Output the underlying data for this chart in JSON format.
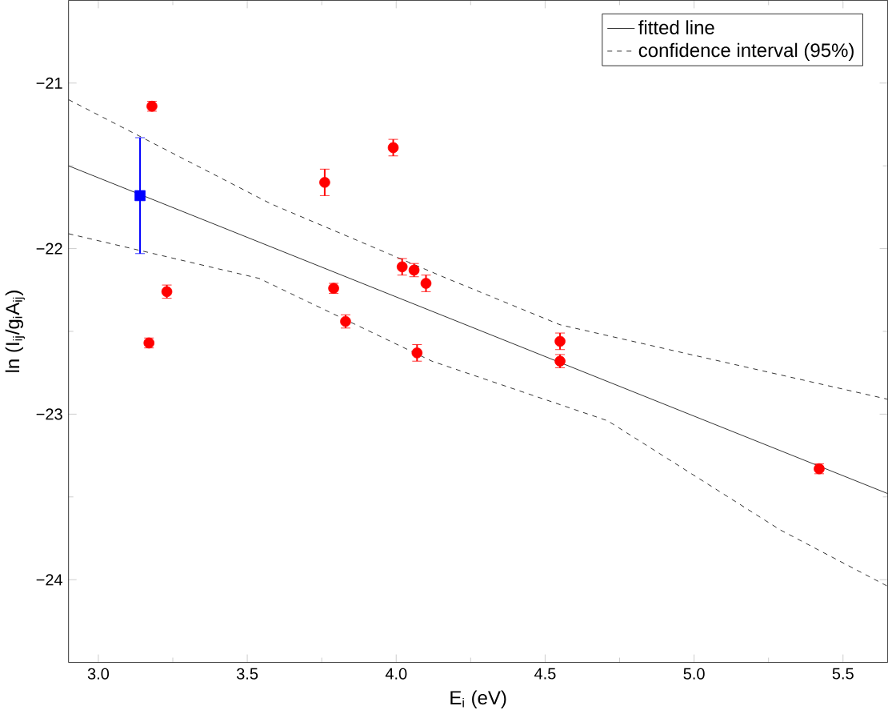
{
  "chart_data": {
    "type": "scatter",
    "xlabel": "E$_{i}$ (eV)",
    "ylabel": "ln (I$_{ij}$/g$_{i}$A$_{ij}$)",
    "xlim": [
      2.9,
      5.65
    ],
    "ylim": [
      -24.5,
      -20.5
    ],
    "xticks": [
      {
        "value": 3.0,
        "label": "3.0"
      },
      {
        "value": 3.5,
        "label": "3.5"
      },
      {
        "value": 4.0,
        "label": "4.0"
      },
      {
        "value": 4.5,
        "label": "4.5"
      },
      {
        "value": 5.0,
        "label": "5.0"
      },
      {
        "value": 5.5,
        "label": "5.5"
      }
    ],
    "yticks": [
      {
        "value": -24,
        "label": "−24"
      },
      {
        "value": -23,
        "label": "−23"
      },
      {
        "value": -22,
        "label": "−22"
      },
      {
        "value": -21,
        "label": "−21"
      }
    ],
    "grid": false,
    "legend": "top right",
    "series": [
      {
        "type": "line",
        "name": "fitted line",
        "color": "#000000",
        "line_style": "solid",
        "marker": "none",
        "x": [
          2.9,
          5.65
        ],
        "values": [
          -21.5,
          -23.48
        ]
      },
      {
        "type": "line",
        "name": "confidence interval (95%)",
        "color": "#000000",
        "line_style": "dashed",
        "marker": "none",
        "x": [
          2.9,
          3.58,
          4.17,
          4.55,
          4.94,
          5.65
        ],
        "values": [
          -21.1,
          -21.73,
          -22.18,
          -22.46,
          -22.62,
          -22.91
        ]
      },
      {
        "type": "line",
        "color": "#000000",
        "line_style": "dashed",
        "marker": "none",
        "x": [
          2.9,
          3.54,
          4.12,
          4.71,
          5.29,
          5.65
        ],
        "values": [
          -21.91,
          -22.18,
          -22.68,
          -23.04,
          -23.7,
          -24.04
        ]
      },
      {
        "color": "#ff0000",
        "marker": "circle",
        "x": [
          3.17,
          3.18,
          3.23,
          3.76,
          3.79,
          3.83,
          3.99,
          4.02,
          4.06,
          4.07,
          4.1,
          4.55,
          4.55,
          5.42
        ],
        "values": [
          -22.57,
          -21.14,
          -22.26,
          -21.6,
          -22.24,
          -22.44,
          -21.39,
          -22.11,
          -22.13,
          -22.63,
          -22.21,
          -22.56,
          -22.68,
          -23.33
        ],
        "errors": [
          0.03,
          0.03,
          0.04,
          0.08,
          0.03,
          0.04,
          0.05,
          0.05,
          0.04,
          0.05,
          0.05,
          0.05,
          0.04,
          0.03
        ]
      },
      {
        "color": "#0000ff",
        "marker": "square",
        "x": [
          3.14
        ],
        "values": [
          -21.68
        ],
        "errors": [
          [
            -22.03,
            -21.33
          ]
        ]
      }
    ]
  }
}
